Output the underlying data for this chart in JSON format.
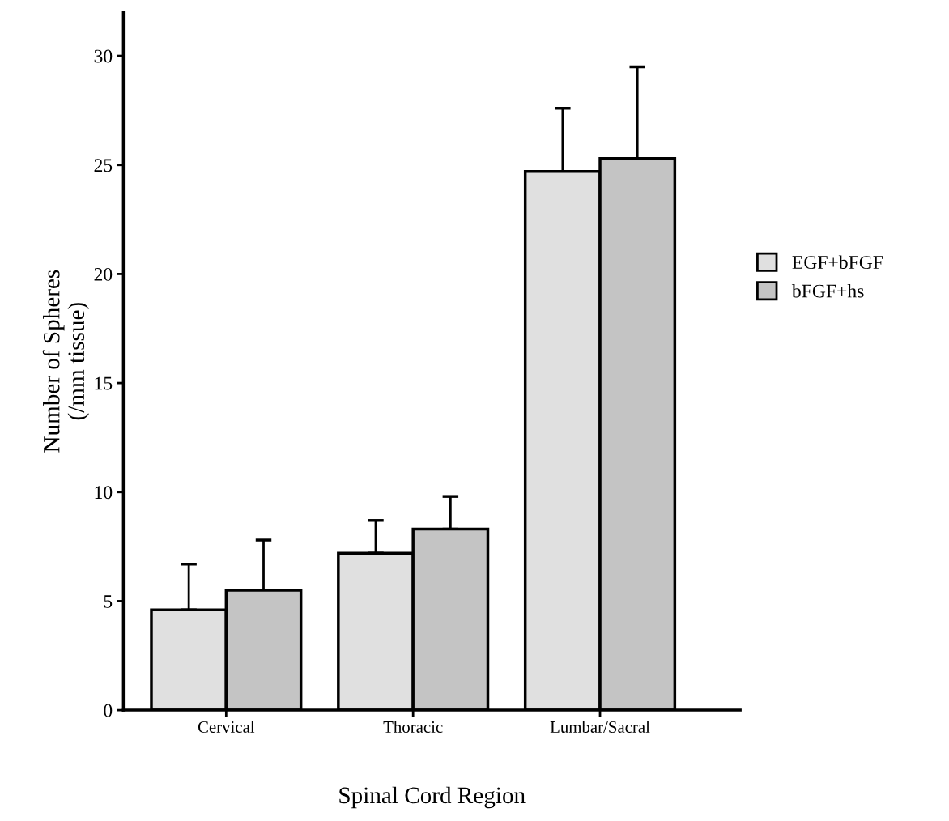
{
  "chart_data": {
    "type": "bar",
    "xlabel": "Spinal Cord Region",
    "ylabel": "Number of Spheres\n(/mm tissue)",
    "categories": [
      "Cervical",
      "Thoracic",
      "Lumbar/Sacral"
    ],
    "series": [
      {
        "name": "EGF+bFGF",
        "color": "#e0e0e0",
        "values": [
          4.6,
          7.2,
          24.7
        ],
        "errors": [
          [
            4.6,
            6.7
          ],
          [
            7.2,
            8.7
          ],
          [
            24.7,
            27.6
          ]
        ]
      },
      {
        "name": "bFGF+hs",
        "color": "#c4c4c4",
        "values": [
          5.5,
          8.3,
          25.3
        ],
        "errors": [
          [
            5.5,
            7.8
          ],
          [
            8.3,
            9.8
          ],
          [
            25.3,
            29.5
          ]
        ]
      }
    ],
    "ylim": [
      0,
      32
    ],
    "yticks": [
      0,
      5,
      10,
      15,
      20,
      25,
      30
    ],
    "grid": false,
    "legend": "right"
  }
}
